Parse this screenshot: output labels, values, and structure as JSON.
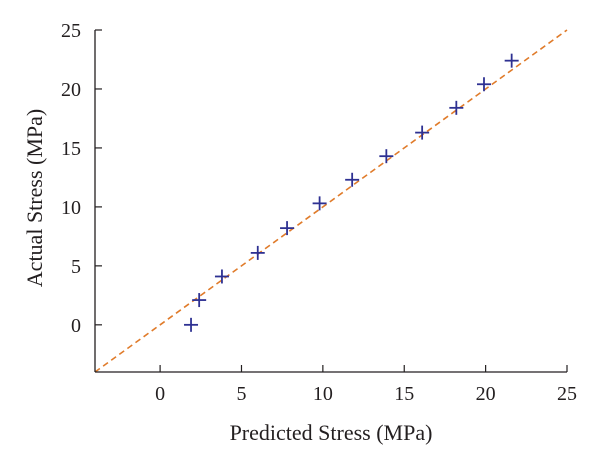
{
  "chart_data": {
    "type": "scatter",
    "xlabel": "Predicted Stress (MPa)",
    "ylabel": "Actual Stress (MPa)",
    "xlim": [
      -4,
      25
    ],
    "ylim": [
      -4,
      25
    ],
    "xticks": [
      0,
      5,
      10,
      15,
      20,
      25
    ],
    "yticks": [
      0,
      5,
      10,
      15,
      20,
      25
    ],
    "grid": false,
    "series": [
      {
        "marker": "plus",
        "color": "#2e3192",
        "points": [
          {
            "x": 1.9,
            "y": 0.0
          },
          {
            "x": 2.4,
            "y": 2.1
          },
          {
            "x": 3.8,
            "y": 4.1
          },
          {
            "x": 6.0,
            "y": 6.1
          },
          {
            "x": 7.8,
            "y": 8.2
          },
          {
            "x": 9.8,
            "y": 10.3
          },
          {
            "x": 11.8,
            "y": 12.3
          },
          {
            "x": 13.9,
            "y": 14.3
          },
          {
            "x": 16.1,
            "y": 16.3
          },
          {
            "x": 18.2,
            "y": 18.4
          },
          {
            "x": 19.9,
            "y": 20.4
          },
          {
            "x": 21.6,
            "y": 22.4
          }
        ]
      }
    ],
    "reference_line": {
      "style": "dashed",
      "color": "#e07b2a",
      "from": {
        "x": -4,
        "y": -4
      },
      "to": {
        "x": 25,
        "y": 25
      }
    }
  }
}
